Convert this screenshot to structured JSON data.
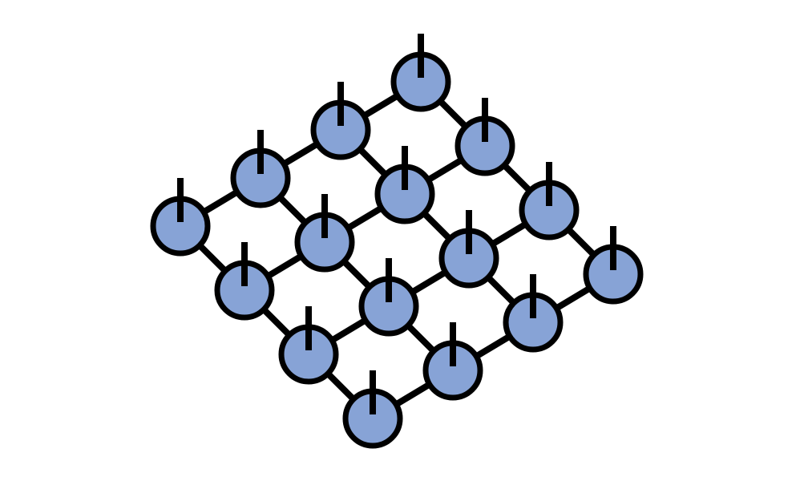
{
  "diagram": {
    "type": "lattice",
    "rows": 4,
    "cols": 4,
    "colors": {
      "background": "#ffffff",
      "node_fill": "#87a3d6",
      "stroke": "#000000"
    },
    "nodes": [
      {
        "row": 0,
        "col": 0,
        "name": "node-r0-c0"
      },
      {
        "row": 0,
        "col": 1,
        "name": "node-r0-c1"
      },
      {
        "row": 0,
        "col": 2,
        "name": "node-r0-c2"
      },
      {
        "row": 0,
        "col": 3,
        "name": "node-r0-c3"
      },
      {
        "row": 1,
        "col": 0,
        "name": "node-r1-c0"
      },
      {
        "row": 1,
        "col": 1,
        "name": "node-r1-c1"
      },
      {
        "row": 1,
        "col": 2,
        "name": "node-r1-c2"
      },
      {
        "row": 1,
        "col": 3,
        "name": "node-r1-c3"
      },
      {
        "row": 2,
        "col": 0,
        "name": "node-r2-c0"
      },
      {
        "row": 2,
        "col": 1,
        "name": "node-r2-c1"
      },
      {
        "row": 2,
        "col": 2,
        "name": "node-r2-c2"
      },
      {
        "row": 2,
        "col": 3,
        "name": "node-r2-c3"
      },
      {
        "row": 3,
        "col": 0,
        "name": "node-r3-c0"
      },
      {
        "row": 3,
        "col": 1,
        "name": "node-r3-c1"
      },
      {
        "row": 3,
        "col": 2,
        "name": "node-r3-c2"
      },
      {
        "row": 3,
        "col": 3,
        "name": "node-r3-c3"
      }
    ]
  }
}
